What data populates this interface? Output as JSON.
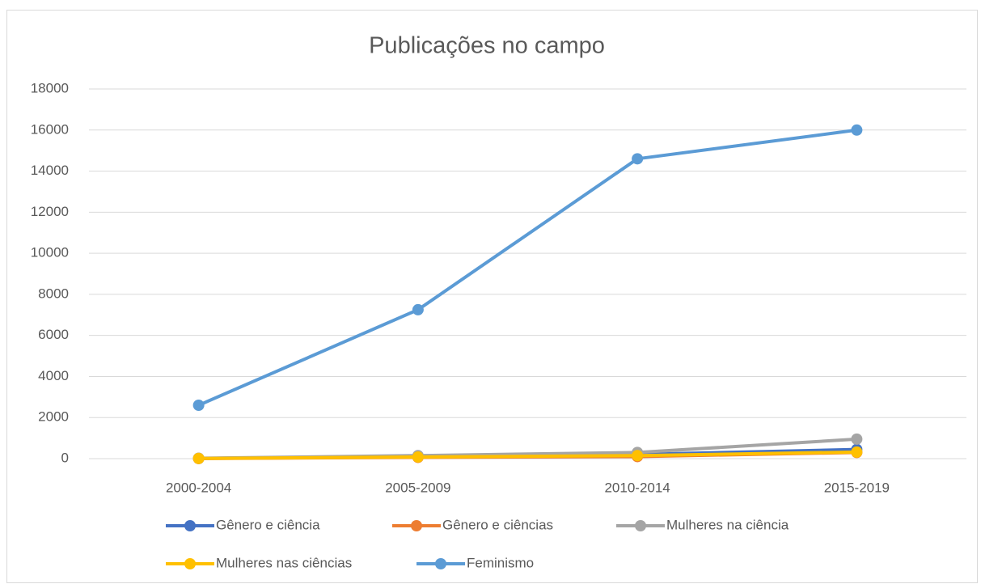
{
  "chart_data": {
    "type": "line",
    "title": "Publicações no campo",
    "categories": [
      "2000-2004",
      "2005-2009",
      "2010-2014",
      "2015-2019"
    ],
    "series": [
      {
        "name": "Gênero e ciência",
        "color": "#4472c4",
        "values": [
          10,
          120,
          200,
          450
        ]
      },
      {
        "name": "Gênero e ciências",
        "color": "#ed7d31",
        "values": [
          5,
          60,
          100,
          300
        ]
      },
      {
        "name": "Mulheres na ciência",
        "color": "#a5a5a5",
        "values": [
          20,
          150,
          300,
          950
        ]
      },
      {
        "name": "Mulheres nas ciências",
        "color": "#ffc000",
        "values": [
          10,
          80,
          150,
          320
        ]
      },
      {
        "name": "Feminismo",
        "color": "#5b9bd5",
        "values": [
          2600,
          7250,
          14600,
          16000
        ]
      }
    ],
    "ylim": [
      0,
      18000
    ],
    "yticks": [
      0,
      2000,
      4000,
      6000,
      8000,
      10000,
      12000,
      14000,
      16000,
      18000
    ],
    "grid": true,
    "legend": "bottom"
  }
}
